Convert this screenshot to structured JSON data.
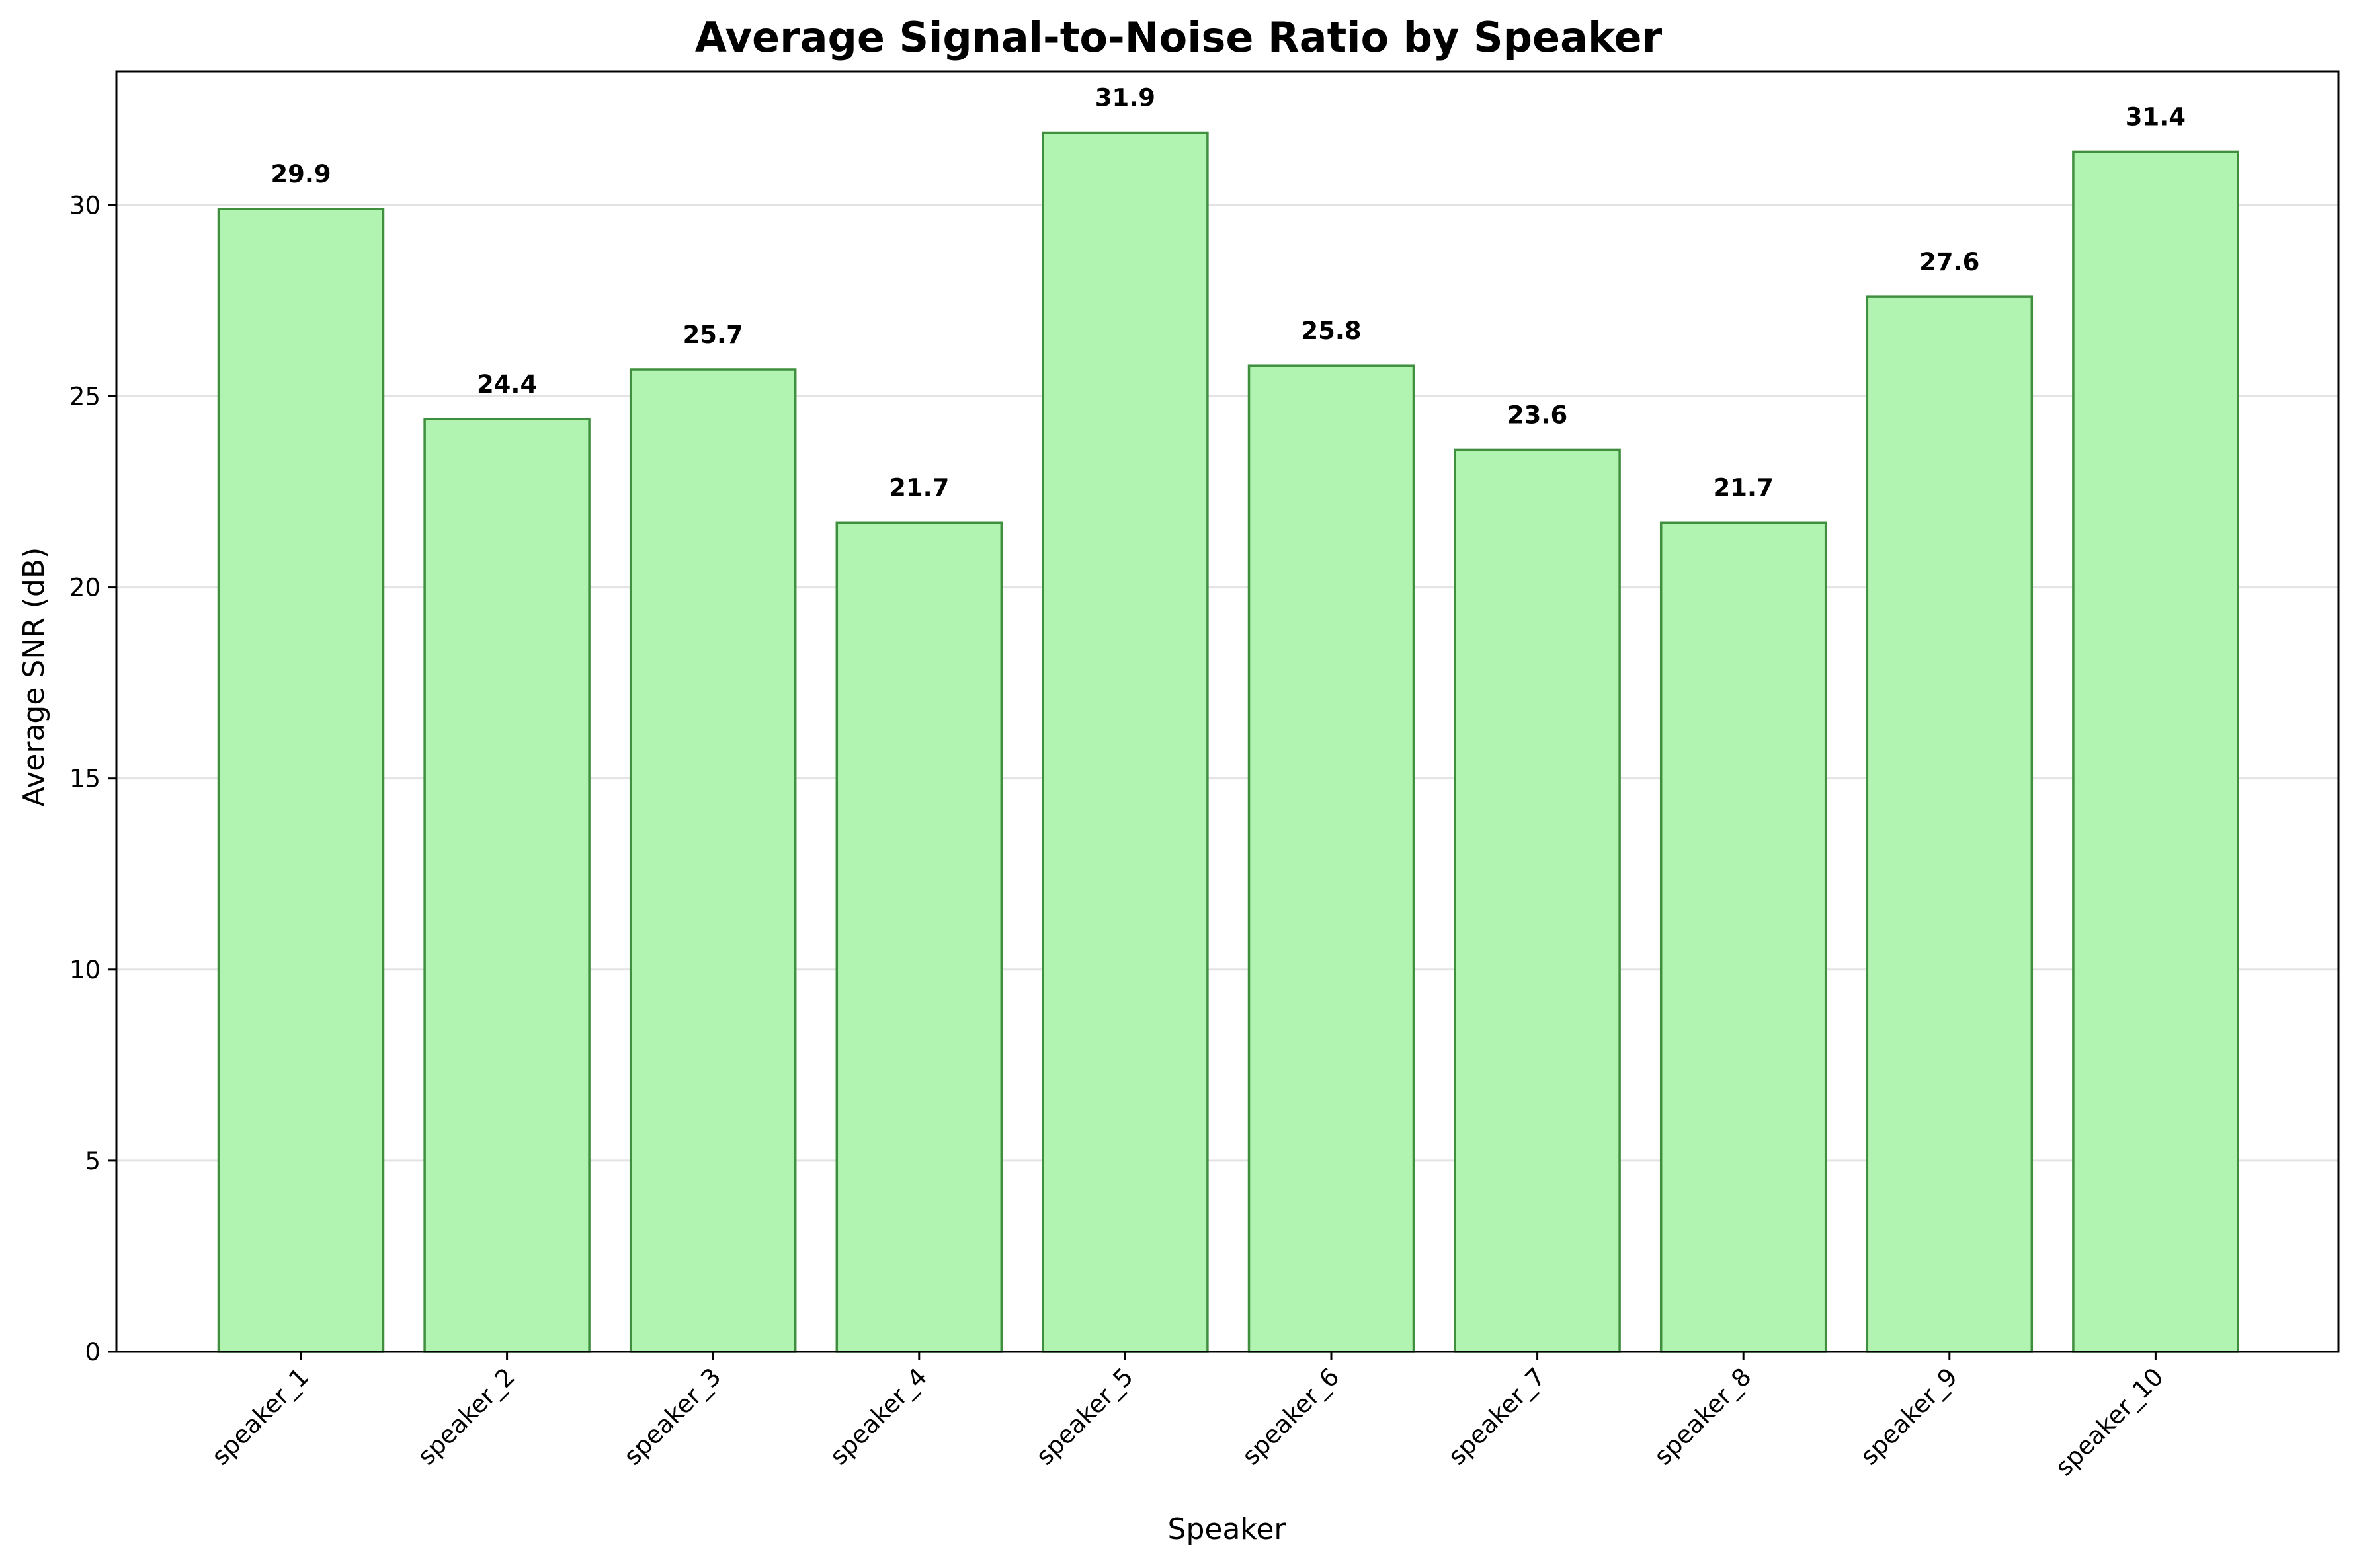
{
  "chart_data": {
    "type": "bar",
    "title": "Average Signal-to-Noise Ratio by Speaker",
    "xlabel": "Speaker",
    "ylabel": "Average SNR (dB)",
    "categories": [
      "speaker_1",
      "speaker_2",
      "speaker_3",
      "speaker_4",
      "speaker_5",
      "speaker_6",
      "speaker_7",
      "speaker_8",
      "speaker_9",
      "speaker_10"
    ],
    "values": [
      29.9,
      24.4,
      25.7,
      21.7,
      31.9,
      25.8,
      23.6,
      21.7,
      27.6,
      31.4
    ],
    "value_labels": [
      "29.9",
      "24.4",
      "25.7",
      "21.7",
      "31.9",
      "25.8",
      "23.6",
      "21.7",
      "27.6",
      "31.4"
    ],
    "ylim": [
      0,
      33.5
    ],
    "yticks": [
      0,
      5,
      10,
      15,
      20,
      25,
      30
    ],
    "ytick_labels": [
      "0",
      "5",
      "10",
      "15",
      "20",
      "25",
      "30"
    ],
    "grid": "y",
    "legend": "none",
    "colors": {
      "bar_fill": "#b1f3b1",
      "bar_edge": "#3f8f3f",
      "grid": "#e3e3e3",
      "axis": "#000000"
    }
  }
}
